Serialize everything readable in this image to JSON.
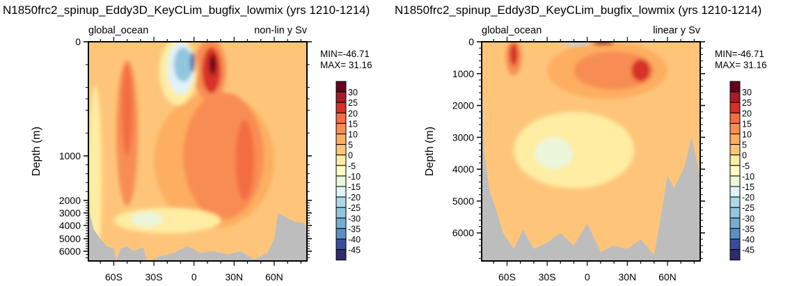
{
  "chart_data": [
    {
      "type": "heatmap",
      "title": "N1850frc2_spinup_Eddy3D_KeyCLim_bugfix_lowmix (yrs 1210-1214)",
      "left_subtitle": "global_ocean",
      "right_subtitle": "non-lin y Sv",
      "ylabel": "Depth (m)",
      "xlabel": "",
      "y_scale": "nonlinear",
      "xlim": [
        -79,
        84.5
      ],
      "ylim": [
        0,
        6600
      ],
      "x_ticks": [
        {
          "value": -60,
          "label": "60S"
        },
        {
          "value": -30,
          "label": "30S"
        },
        {
          "value": 0,
          "label": "0"
        },
        {
          "value": 30,
          "label": "30N"
        },
        {
          "value": 60,
          "label": "60N"
        }
      ],
      "y_ticks": [
        {
          "value": 0,
          "label": "0"
        },
        {
          "value": 1000,
          "label": "1000"
        },
        {
          "value": 2000,
          "label": "2000"
        },
        {
          "value": 3000,
          "label": "3000"
        },
        {
          "value": 4000,
          "label": "4000"
        },
        {
          "value": 5000,
          "label": "5000"
        },
        {
          "value": 6000,
          "label": "6000"
        }
      ],
      "min_label": "MIN=-46.71",
      "max_label": "MAX= 31.16",
      "min": -46.71,
      "max": 31.16,
      "background_value": 3,
      "features": [
        {
          "lat": -74,
          "depth": 1500,
          "rlat": 5,
          "rdepth": 2500,
          "value": -3
        },
        {
          "lat": 15,
          "depth": 1100,
          "rlat": 45,
          "rdepth": 900,
          "value": 8
        },
        {
          "lat": 22,
          "depth": 1000,
          "rlat": 30,
          "rdepth": 800,
          "value": 12
        },
        {
          "lat": -50,
          "depth": 800,
          "rlat": 8,
          "rdepth": 900,
          "value": 12
        },
        {
          "lat": -50,
          "depth": 600,
          "rlat": 4,
          "rdepth": 400,
          "value": 18
        },
        {
          "lat": 38,
          "depth": 1100,
          "rlat": 7,
          "rdepth": 550,
          "value": 18
        },
        {
          "lat": 12,
          "depth": 250,
          "rlat": 12,
          "rdepth": 300,
          "value": 14
        },
        {
          "lat": 13,
          "depth": 250,
          "rlat": 7,
          "rdepth": 200,
          "value": 22
        },
        {
          "lat": 14,
          "depth": 200,
          "rlat": 2.5,
          "rdepth": 90,
          "value": 30
        },
        {
          "lat": -12,
          "depth": 260,
          "rlat": 14,
          "rdepth": 330,
          "value": -5
        },
        {
          "lat": -10,
          "depth": 230,
          "rlat": 10,
          "rdepth": 230,
          "value": -20
        },
        {
          "lat": -8,
          "depth": 200,
          "rlat": 7,
          "rdepth": 150,
          "value": -30
        },
        {
          "lat": -1,
          "depth": 180,
          "rlat": 1.5,
          "rdepth": 90,
          "value": -45
        },
        {
          "lat": -20,
          "depth": 3600,
          "rlat": 40,
          "rdepth": 1000,
          "value": -5
        },
        {
          "lat": -35,
          "depth": 3500,
          "rlat": 12,
          "rdepth": 600,
          "value": -12
        }
      ],
      "bathymetry": [
        [
          -79,
          1100
        ],
        [
          -78,
          3000
        ],
        [
          -75,
          4300
        ],
        [
          -70,
          5000
        ],
        [
          -65,
          5600
        ],
        [
          -60,
          5800
        ],
        [
          -58,
          6600
        ],
        [
          -55,
          5800
        ],
        [
          -50,
          5600
        ],
        [
          -45,
          6000
        ],
        [
          -38,
          5700
        ],
        [
          -35,
          6600
        ],
        [
          -25,
          6300
        ],
        [
          -15,
          6100
        ],
        [
          -5,
          5600
        ],
        [
          5,
          6100
        ],
        [
          15,
          6000
        ],
        [
          25,
          6200
        ],
        [
          35,
          6000
        ],
        [
          45,
          6500
        ],
        [
          55,
          6100
        ],
        [
          60,
          5000
        ],
        [
          63,
          3000
        ],
        [
          68,
          3300
        ],
        [
          75,
          3700
        ],
        [
          82,
          3800
        ],
        [
          84.5,
          4200
        ]
      ]
    },
    {
      "type": "heatmap",
      "title": "N1850frc2_spinup_Eddy3D_KeyCLim_bugfix_lowmix (yrs 1210-1214)",
      "left_subtitle": "global_ocean",
      "right_subtitle": "linear y Sv",
      "ylabel": "Depth (m)",
      "xlabel": "",
      "y_scale": "linear",
      "xlim": [
        -79,
        84.5
      ],
      "ylim": [
        0,
        6880
      ],
      "x_ticks": [
        {
          "value": -60,
          "label": "60S"
        },
        {
          "value": -30,
          "label": "30S"
        },
        {
          "value": 0,
          "label": "0"
        },
        {
          "value": 30,
          "label": "30N"
        },
        {
          "value": 60,
          "label": "60N"
        }
      ],
      "y_ticks": [
        {
          "value": 0,
          "label": "0"
        },
        {
          "value": 1000,
          "label": "1000"
        },
        {
          "value": 2000,
          "label": "2000"
        },
        {
          "value": 3000,
          "label": "3000"
        },
        {
          "value": 4000,
          "label": "4000"
        },
        {
          "value": 5000,
          "label": "5000"
        },
        {
          "value": 6000,
          "label": "6000"
        }
      ],
      "min_label": "MIN=-46.71",
      "max_label": "MAX= 31.16",
      "min": -46.71,
      "max": 31.16,
      "background_value": 3,
      "features": [
        {
          "lat": 15,
          "depth": 900,
          "rlat": 45,
          "rdepth": 900,
          "value": 8
        },
        {
          "lat": 20,
          "depth": 900,
          "rlat": 30,
          "rdepth": 600,
          "value": 12
        },
        {
          "lat": 40,
          "depth": 900,
          "rlat": 7,
          "rdepth": 350,
          "value": 20
        },
        {
          "lat": -55,
          "depth": 500,
          "rlat": 6,
          "rdepth": 600,
          "value": 14
        },
        {
          "lat": -55,
          "depth": 400,
          "rlat": 3,
          "rdepth": 350,
          "value": 20
        },
        {
          "lat": -10,
          "depth": 3400,
          "rlat": 45,
          "rdepth": 1200,
          "value": -5
        },
        {
          "lat": -25,
          "depth": 3500,
          "rlat": 14,
          "rdepth": 500,
          "value": -12
        },
        {
          "lat": -8,
          "depth": 40,
          "rlat": 10,
          "rdepth": 50,
          "value": -25
        },
        {
          "lat": 12,
          "depth": 40,
          "rlat": 8,
          "rdepth": 50,
          "value": 28
        }
      ],
      "bathymetry": [
        [
          -79,
          900
        ],
        [
          -77,
          3500
        ],
        [
          -73,
          4700
        ],
        [
          -68,
          5300
        ],
        [
          -63,
          6000
        ],
        [
          -55,
          6500
        ],
        [
          -48,
          5900
        ],
        [
          -40,
          6500
        ],
        [
          -30,
          6300
        ],
        [
          -20,
          6000
        ],
        [
          -10,
          6400
        ],
        [
          0,
          5700
        ],
        [
          10,
          6600
        ],
        [
          20,
          6400
        ],
        [
          30,
          6500
        ],
        [
          40,
          6200
        ],
        [
          50,
          6700
        ],
        [
          55,
          5500
        ],
        [
          60,
          4200
        ],
        [
          65,
          4600
        ],
        [
          72,
          4000
        ],
        [
          78,
          3000
        ],
        [
          84.5,
          4200
        ]
      ]
    }
  ],
  "colorbar": {
    "labels": [
      "30",
      "25",
      "20",
      "15",
      "10",
      "5",
      "0",
      "-5",
      "-10",
      "-15",
      "-20",
      "-25",
      "-30",
      "-35",
      "-40",
      "-45"
    ],
    "levels": [
      30,
      25,
      20,
      15,
      10,
      5,
      0,
      -5,
      -10,
      -15,
      -20,
      -25,
      -30,
      -35,
      -40,
      -45
    ],
    "colors": [
      "#67001f",
      "#a51d26",
      "#d73027",
      "#f46d43",
      "#f88d52",
      "#fdae61",
      "#fec57a",
      "#feeda2",
      "#ffffc4",
      "#ebf6db",
      "#e0f3f8",
      "#abd9e9",
      "#92c5de",
      "#74add1",
      "#5b8fc5",
      "#3a4d9c",
      "#2d2a6e"
    ],
    "land_color": "#bdbdbd"
  }
}
